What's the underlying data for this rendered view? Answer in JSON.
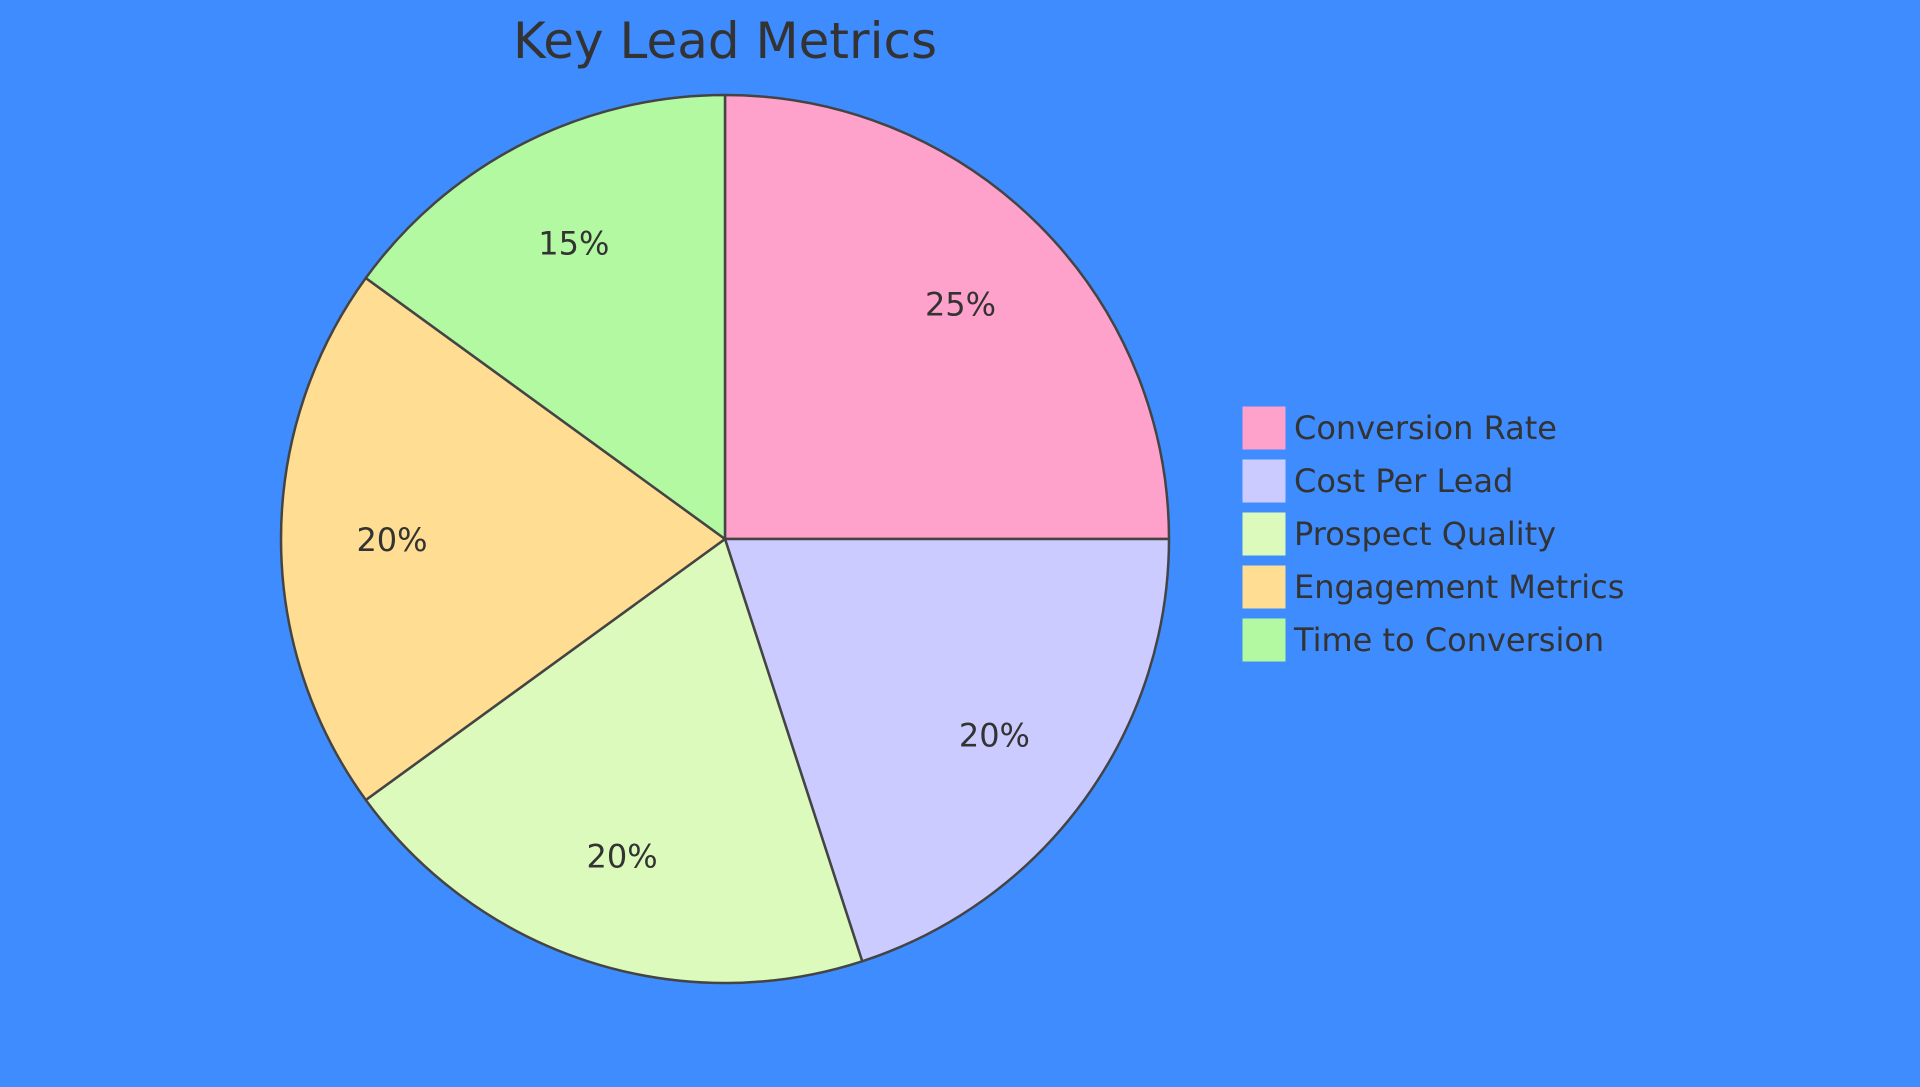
{
  "chart_data": {
    "type": "pie",
    "title": "Key Lead Metrics",
    "background": "#3f8cff",
    "slice_stroke": "#444444",
    "legend_position": "right",
    "slices": [
      {
        "label": "Conversion Rate",
        "value": 25,
        "value_label": "25%",
        "color": "#ffa2cb"
      },
      {
        "label": "Cost Per Lead",
        "value": 20,
        "value_label": "20%",
        "color": "#cbcbff"
      },
      {
        "label": "Prospect Quality",
        "value": 20,
        "value_label": "20%",
        "color": "#dcfabb"
      },
      {
        "label": "Engagement Metrics",
        "value": 20,
        "value_label": "20%",
        "color": "#ffdd92"
      },
      {
        "label": "Time to Conversion",
        "value": 15,
        "value_label": "15%",
        "color": "#b3f9a2"
      }
    ]
  }
}
